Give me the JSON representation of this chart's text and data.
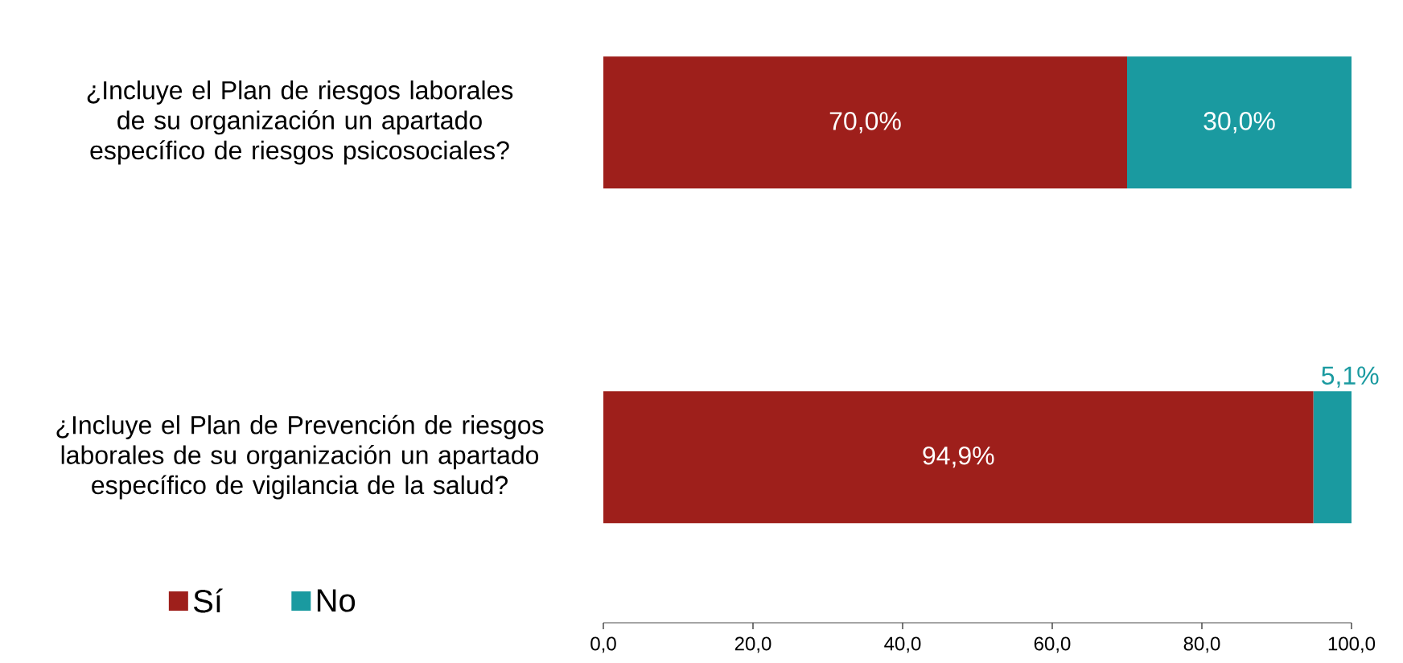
{
  "chart_data": {
    "type": "bar",
    "orientation": "horizontal",
    "stacked": true,
    "categories": [
      "¿Incluye el Plan de riesgos laborales de su organización un apartado específico de riesgos psicosociales?",
      "¿Incluye el Plan de Prevención de riesgos laborales de su organización un apartado específico de vigilancia de la salud?"
    ],
    "series": [
      {
        "name": "Sí",
        "color": "#9e1f1b",
        "values": [
          70.0,
          94.9
        ],
        "value_labels": [
          "70,0%",
          "94,9%"
        ]
      },
      {
        "name": "No",
        "color": "#1a9aa0",
        "values": [
          30.0,
          5.1
        ],
        "value_labels": [
          "30,0%",
          "5,1%"
        ]
      }
    ],
    "xlim": [
      0,
      100
    ],
    "xticks": [
      {
        "value": 0,
        "label": "0,0"
      },
      {
        "value": 20,
        "label": "20,0"
      },
      {
        "value": 40,
        "label": "40,0"
      },
      {
        "value": 60,
        "label": "60,0"
      },
      {
        "value": 80,
        "label": "80,0"
      },
      {
        "value": 100,
        "label": "100,0"
      }
    ],
    "grid": false,
    "legend": "bottom left"
  }
}
